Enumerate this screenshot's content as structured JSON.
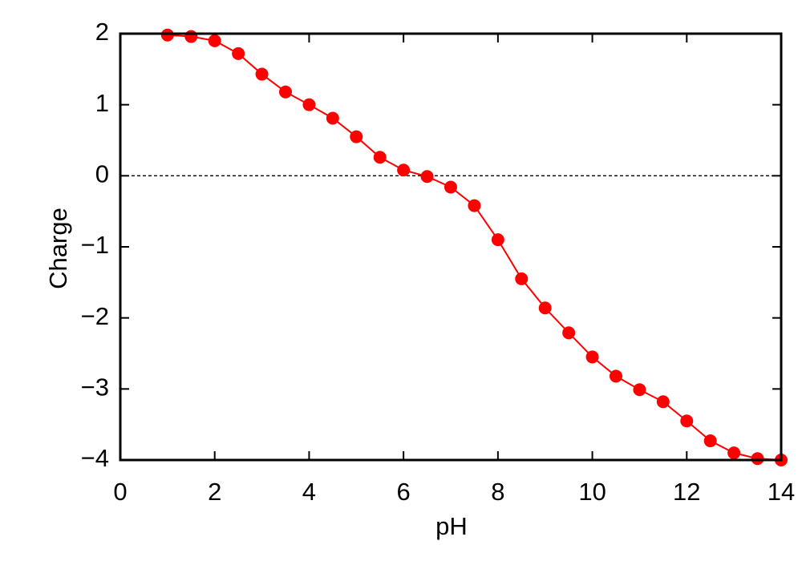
{
  "chart_data": {
    "type": "line",
    "x_label": "pH",
    "y_label": "Charge",
    "x": [
      1,
      1.5,
      2,
      2.5,
      3,
      3.5,
      4,
      4.5,
      5,
      5.5,
      6,
      6.5,
      7,
      7.5,
      8,
      8.5,
      9,
      9.5,
      10,
      10.5,
      11,
      11.5,
      12,
      12.5,
      13,
      13.5,
      14
    ],
    "series": [
      {
        "color": "#ff0000",
        "values": [
          1.98,
          1.96,
          1.9,
          1.72,
          1.43,
          1.18,
          1.0,
          0.81,
          0.55,
          0.26,
          0.08,
          -0.01,
          -0.16,
          -0.42,
          -0.9,
          -1.45,
          -1.86,
          -2.21,
          -2.55,
          -2.82,
          -3.01,
          -3.18,
          -3.45,
          -3.73,
          -3.9,
          -3.98,
          -4.0
        ]
      }
    ],
    "xlim": [
      0,
      14
    ],
    "xticks": [
      0,
      2,
      4,
      6,
      8,
      10,
      12,
      14
    ],
    "ylim": [
      -4,
      2
    ],
    "yticks": [
      {
        "value": -4,
        "label": "−4"
      },
      {
        "value": -3,
        "label": "−3"
      },
      {
        "value": -2,
        "label": "−2"
      },
      {
        "value": -1,
        "label": "−1"
      },
      0,
      1,
      2
    ],
    "zero_line": true,
    "markers": true
  }
}
